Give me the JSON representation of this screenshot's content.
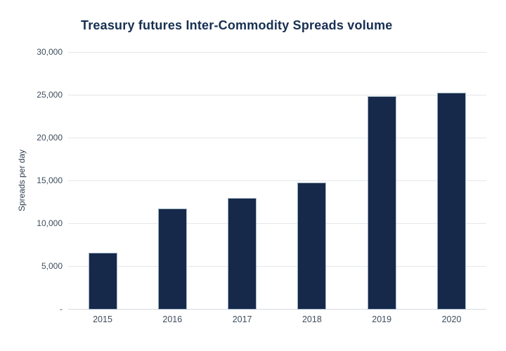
{
  "title": "Treasury futures Inter-Commodity Spreads volume",
  "chart_data": {
    "type": "bar",
    "title": "Treasury futures Inter-Commodity Spreads volume",
    "categories": [
      "2015",
      "2016",
      "2017",
      "2018",
      "2019",
      "2020"
    ],
    "values": [
      6600,
      11800,
      13000,
      14800,
      24900,
      25300
    ],
    "xlabel": "",
    "ylabel": "Spreads per day",
    "ylim": [
      0,
      30000
    ],
    "ytick_step": 5000,
    "ytick_labels": [
      "-",
      "5,000",
      "10,000",
      "15,000",
      "20,000",
      "25,000",
      "30,000"
    ],
    "grid": true,
    "legend": "none",
    "colors": {
      "bar_fill": "#16294b",
      "bar_border": "#a4b6c6",
      "gridline": "#e3e6ea",
      "axis_line": "#d6dbe1",
      "title_text": "#172f52",
      "tick_text": "#3e4c5c",
      "background": "#ffffff"
    }
  }
}
